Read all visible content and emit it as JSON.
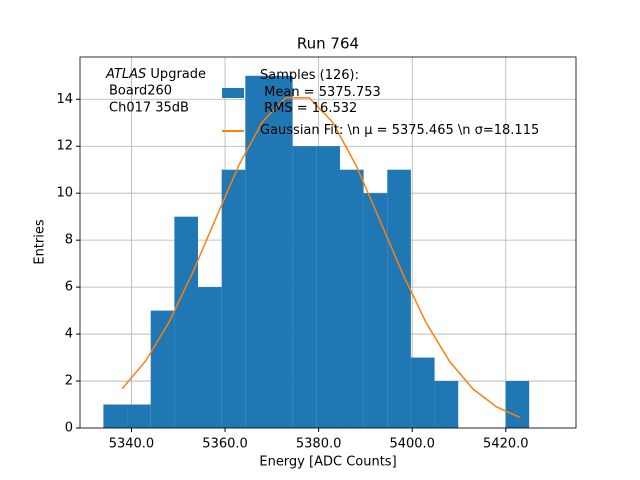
{
  "chart_data": {
    "type": "histogram",
    "title": "Run 764",
    "xlabel": "Energy [ADC Counts]",
    "ylabel": "Entries",
    "annotation": {
      "experiment": "ATLAS",
      "lines": [
        "Upgrade",
        "Board260",
        "Ch017 35dB"
      ]
    },
    "bins": [
      5334.0,
      5339.06,
      5344.11,
      5349.17,
      5354.22,
      5359.28,
      5364.33,
      5369.39,
      5374.44,
      5379.5,
      5384.56,
      5389.61,
      5394.67,
      5399.72,
      5404.78,
      5409.83,
      5414.89,
      5419.94,
      5425.0
    ],
    "counts": [
      1,
      1,
      5,
      9,
      6,
      11,
      15,
      15,
      12,
      12,
      11,
      10,
      11,
      3,
      2,
      0,
      0,
      2
    ],
    "name": "Samples (126):\n Mean = 5375.753\n RMS = 16.532",
    "color": "#1f77b4",
    "fit": {
      "type": "line",
      "name": "Gaussian Fit: \\n μ = 5375.465 \\n σ=18.115",
      "color": "#ff7f0e",
      "x": [
        5338,
        5343,
        5348,
        5353,
        5358,
        5363,
        5368,
        5373,
        5378,
        5383,
        5388,
        5393,
        5398,
        5403,
        5408,
        5413,
        5418,
        5423
      ],
      "values": [
        1.67,
        2.85,
        4.5,
        6.58,
        8.92,
        11.21,
        13.04,
        14.07,
        14.06,
        13.02,
        11.18,
        8.89,
        6.55,
        4.47,
        2.83,
        1.66,
        0.9,
        0.45
      ]
    },
    "xlim": [
      5329,
      5435
    ],
    "ylim": [
      0,
      15.8
    ],
    "xticks": [
      {
        "value": 5340,
        "label": "5340.0"
      },
      {
        "value": 5360,
        "label": "5360.0"
      },
      {
        "value": 5380,
        "label": "5380.0"
      },
      {
        "value": 5400,
        "label": "5400.0"
      },
      {
        "value": 5420,
        "label": "5420.0"
      }
    ],
    "yticks": [
      0,
      2,
      4,
      6,
      8,
      10,
      12,
      14
    ],
    "grid": true,
    "legend": "upper center"
  }
}
